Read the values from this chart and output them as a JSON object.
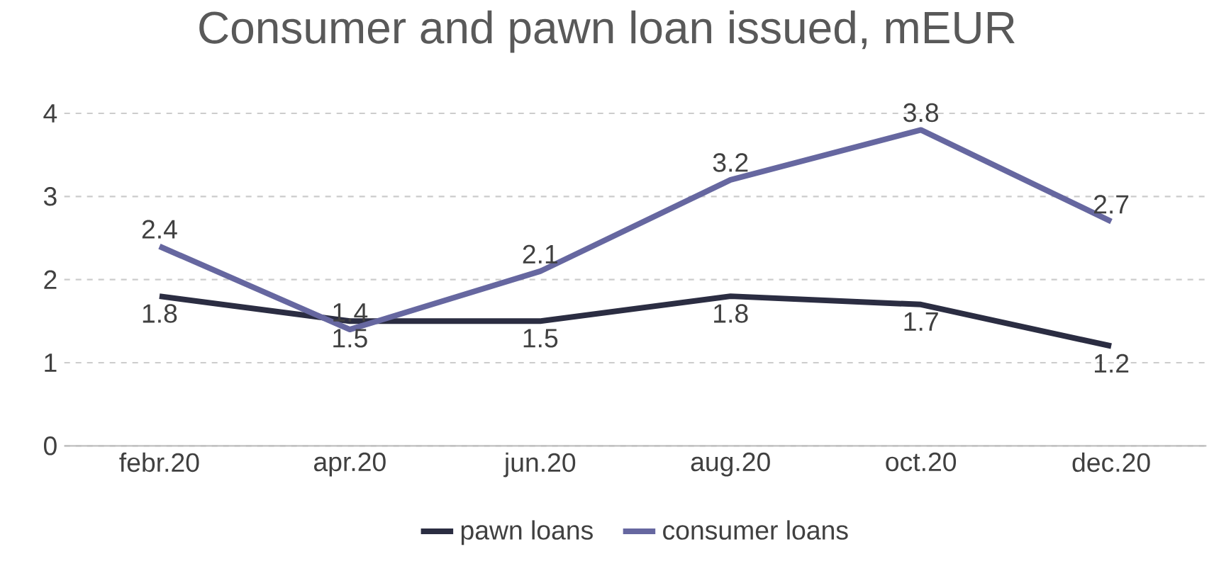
{
  "chart_data": {
    "type": "line",
    "title": "Consumer and pawn loan issued, mEUR",
    "categories": [
      "febr.20",
      "apr.20",
      "jun.20",
      "aug.20",
      "oct.20",
      "dec.20"
    ],
    "series": [
      {
        "name": "pawn loans",
        "color": "#2b2d42",
        "values": [
          1.8,
          1.5,
          1.5,
          1.8,
          1.7,
          1.2
        ]
      },
      {
        "name": "consumer loans",
        "color": "#6667a0",
        "values": [
          2.4,
          1.4,
          2.1,
          3.2,
          3.8,
          2.7
        ]
      }
    ],
    "ylim": [
      0,
      4
    ],
    "yticks": [
      0,
      1,
      2,
      3,
      4
    ],
    "grid": "y",
    "legend": "bottom",
    "data_labels": true,
    "line_style": "solid"
  }
}
